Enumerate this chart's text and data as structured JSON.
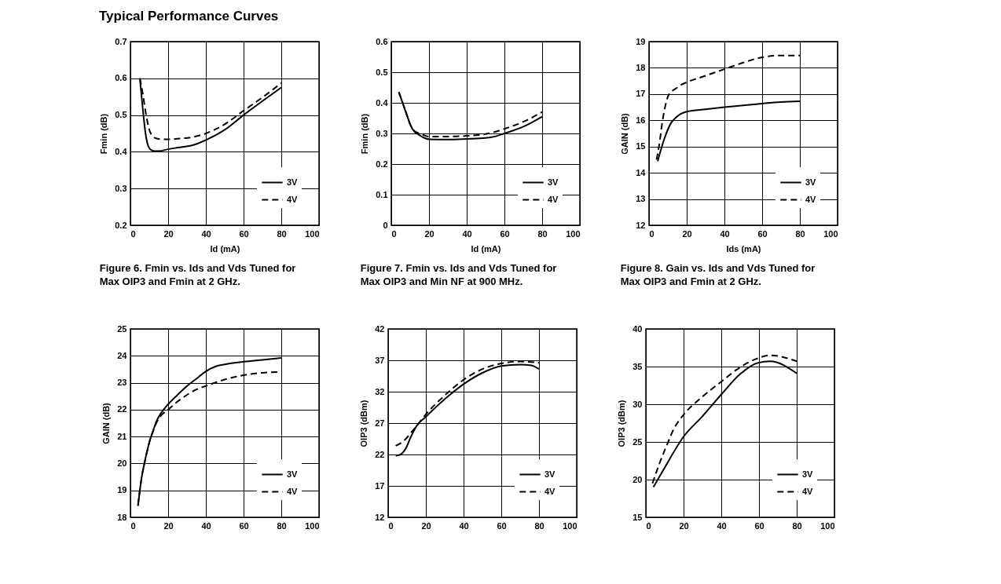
{
  "chart_data": [
    {
      "type": "line",
      "title": "Typical Performance Curves",
      "xlabel": "Id (mA)",
      "ylabel": "Fmin (dB)",
      "xlim": [
        0,
        100
      ],
      "xticks": [
        0,
        20,
        40,
        60,
        80,
        100
      ],
      "ylim": [
        0.2,
        0.7
      ],
      "yticks": [
        0.2,
        0.3,
        0.4,
        0.5,
        0.6,
        0.7
      ],
      "grid": true,
      "legend": "bottom right",
      "annotations": [
        "Figure 6. Fmin vs. Ids and Vds Tuned for Max OIP3 and Fmin at 2 GHz."
      ],
      "series": [
        {
          "name": "3V",
          "color": "#000000",
          "line_style": "solid",
          "x": [
            5,
            6.5,
            8,
            9.5,
            11,
            13,
            15,
            20,
            26,
            33,
            40,
            50,
            60,
            70,
            80
          ],
          "values": [
            0.6,
            0.52,
            0.45,
            0.415,
            0.405,
            0.402,
            0.402,
            0.407,
            0.412,
            0.418,
            0.432,
            0.46,
            0.5,
            0.538,
            0.575
          ]
        },
        {
          "name": "4V",
          "color": "#000000",
          "line_style": "dashed",
          "x": [
            5,
            6.5,
            8,
            10,
            12,
            14,
            17,
            20,
            26,
            33,
            40,
            50,
            60,
            70,
            80
          ],
          "values": [
            0.6,
            0.56,
            0.51,
            0.46,
            0.442,
            0.436,
            0.434,
            0.434,
            0.436,
            0.44,
            0.45,
            0.475,
            0.512,
            0.548,
            0.587
          ]
        }
      ]
    },
    {
      "type": "line",
      "xlabel": "Id (mA)",
      "ylabel": "Fmin (dB)",
      "xlim": [
        0,
        100
      ],
      "xticks": [
        0,
        20,
        40,
        60,
        80,
        100
      ],
      "ylim": [
        0,
        0.6
      ],
      "yticks": [
        0,
        0.1,
        0.2,
        0.3,
        0.4,
        0.5,
        0.6
      ],
      "grid": true,
      "legend": "bottom right",
      "annotations": [
        "Figure 7. Fmin vs. Ids and Vds Tuned for Max OIP3 and Min NF at 900 MHz."
      ],
      "series": [
        {
          "name": "3V",
          "color": "#000000",
          "line_style": "solid",
          "x": [
            4,
            6,
            8,
            10,
            12,
            14,
            17,
            20,
            30,
            40,
            50,
            55,
            60,
            70,
            80
          ],
          "values": [
            0.435,
            0.4,
            0.365,
            0.33,
            0.308,
            0.298,
            0.287,
            0.281,
            0.28,
            0.282,
            0.285,
            0.29,
            0.3,
            0.322,
            0.355
          ]
        },
        {
          "name": "4V",
          "color": "#000000",
          "line_style": "dashed",
          "x": [
            4,
            6,
            8,
            10,
            12,
            14,
            17,
            20,
            30,
            40,
            50,
            55,
            60,
            70,
            80
          ],
          "values": [
            0.435,
            0.4,
            0.365,
            0.33,
            0.31,
            0.302,
            0.295,
            0.29,
            0.29,
            0.292,
            0.298,
            0.305,
            0.315,
            0.338,
            0.37
          ]
        }
      ]
    },
    {
      "type": "line",
      "xlabel": "Ids (mA)",
      "ylabel": "GAIN (dB)",
      "xlim": [
        0,
        100
      ],
      "xticks": [
        0,
        20,
        40,
        60,
        80,
        100
      ],
      "ylim": [
        12,
        19
      ],
      "yticks": [
        12,
        13,
        14,
        15,
        16,
        17,
        18,
        19
      ],
      "grid": true,
      "legend": "bottom right",
      "annotations": [
        "Figure 8. Gain vs. Ids and Vds Tuned for Max OIP3 and Fmin at 2 GHz."
      ],
      "series": [
        {
          "name": "3V",
          "color": "#000000",
          "line_style": "solid",
          "x": [
            4.6,
            6.8,
            8.9,
            11.7,
            14.5,
            17,
            20,
            30,
            40,
            50,
            60,
            70,
            80
          ],
          "values": [
            14.44,
            15.0,
            15.45,
            15.9,
            16.12,
            16.25,
            16.33,
            16.42,
            16.5,
            16.57,
            16.64,
            16.7,
            16.73
          ]
        },
        {
          "name": "4V",
          "color": "#000000",
          "line_style": "dashed",
          "x": [
            4,
            5.5,
            7,
            8.5,
            10,
            12,
            14,
            17,
            20,
            30,
            40,
            50,
            60,
            70,
            80
          ],
          "values": [
            14.5,
            15.1,
            15.9,
            16.5,
            16.9,
            17.1,
            17.2,
            17.35,
            17.45,
            17.7,
            17.95,
            18.2,
            18.4,
            18.47,
            18.47
          ]
        }
      ]
    },
    {
      "type": "line",
      "ylabel": "GAIN (dB)",
      "xlim": [
        0,
        100
      ],
      "xticks": [
        0,
        20,
        40,
        60,
        80,
        100
      ],
      "ylim": [
        18,
        25
      ],
      "yticks": [
        18,
        19,
        20,
        21,
        22,
        23,
        24,
        25
      ],
      "grid": true,
      "legend": "bottom right",
      "series": [
        {
          "name": "3V",
          "color": "#000000",
          "line_style": "solid",
          "x": [
            4,
            5,
            6,
            7.4,
            9,
            10.5,
            12,
            13.7,
            16.5,
            20,
            25,
            30,
            35,
            40,
            45,
            50,
            60,
            70,
            80
          ],
          "values": [
            18.42,
            19.0,
            19.5,
            20.0,
            20.5,
            20.9,
            21.2,
            21.55,
            21.9,
            22.2,
            22.55,
            22.88,
            23.15,
            23.42,
            23.6,
            23.68,
            23.78,
            23.85,
            23.92
          ]
        },
        {
          "name": "4V",
          "color": "#000000",
          "line_style": "dashed",
          "x": [
            4,
            5,
            6,
            7.4,
            9,
            10.5,
            12,
            13.7,
            16.5,
            20,
            25,
            30,
            35,
            40,
            50,
            60,
            70,
            80
          ],
          "values": [
            18.45,
            19.0,
            19.5,
            20.0,
            20.5,
            20.9,
            21.2,
            21.5,
            21.8,
            22.0,
            22.3,
            22.55,
            22.75,
            22.88,
            23.12,
            23.28,
            23.37,
            23.4
          ]
        }
      ]
    },
    {
      "type": "line",
      "ylabel": "OIP3 (dBm)",
      "xlim": [
        0,
        100
      ],
      "xticks": [
        0,
        20,
        40,
        60,
        80,
        100
      ],
      "ylim": [
        12,
        42
      ],
      "yticks": [
        12,
        17,
        22,
        27,
        32,
        37,
        42
      ],
      "grid": true,
      "legend": "bottom right",
      "series": [
        {
          "name": "3V",
          "color": "#000000",
          "line_style": "solid",
          "x": [
            4,
            6.6,
            9.4,
            12.2,
            15,
            20,
            30,
            40,
            50,
            60,
            70,
            76,
            80
          ],
          "values": [
            21.8,
            22.0,
            23.0,
            24.9,
            26.5,
            28.0,
            30.8,
            33.2,
            35.0,
            36.1,
            36.3,
            36.2,
            35.6
          ]
        },
        {
          "name": "4V",
          "color": "#000000",
          "line_style": "dashed",
          "x": [
            4,
            6.6,
            9.4,
            12.2,
            15,
            20,
            30,
            40,
            50,
            60,
            70,
            80
          ],
          "values": [
            23.4,
            23.8,
            24.5,
            25.5,
            26.5,
            28.4,
            31.4,
            33.9,
            35.6,
            36.5,
            36.8,
            36.6
          ]
        }
      ]
    },
    {
      "type": "line",
      "ylabel": "OIP3 (dBm)",
      "xlim": [
        0,
        100
      ],
      "xticks": [
        0,
        20,
        40,
        60,
        80,
        100
      ],
      "ylim": [
        15,
        40
      ],
      "yticks": [
        15,
        20,
        25,
        30,
        35,
        40
      ],
      "grid": true,
      "legend": "bottom right",
      "series": [
        {
          "name": "3V",
          "color": "#000000",
          "line_style": "solid",
          "x": [
            4,
            10,
            20,
            30,
            40,
            50,
            59.4,
            66,
            80
          ],
          "values": [
            19.0,
            21.6,
            25.7,
            28.4,
            31.3,
            34.0,
            35.5,
            35.7,
            34.1
          ]
        },
        {
          "name": "4V",
          "color": "#000000",
          "line_style": "dashed",
          "x": [
            3.5,
            7,
            11,
            15,
            20,
            30,
            40,
            50,
            59.4,
            66,
            80
          ],
          "values": [
            19.5,
            22.0,
            24.5,
            26.8,
            28.6,
            31.0,
            33.0,
            34.9,
            36.1,
            36.5,
            35.7
          ]
        }
      ]
    }
  ]
}
